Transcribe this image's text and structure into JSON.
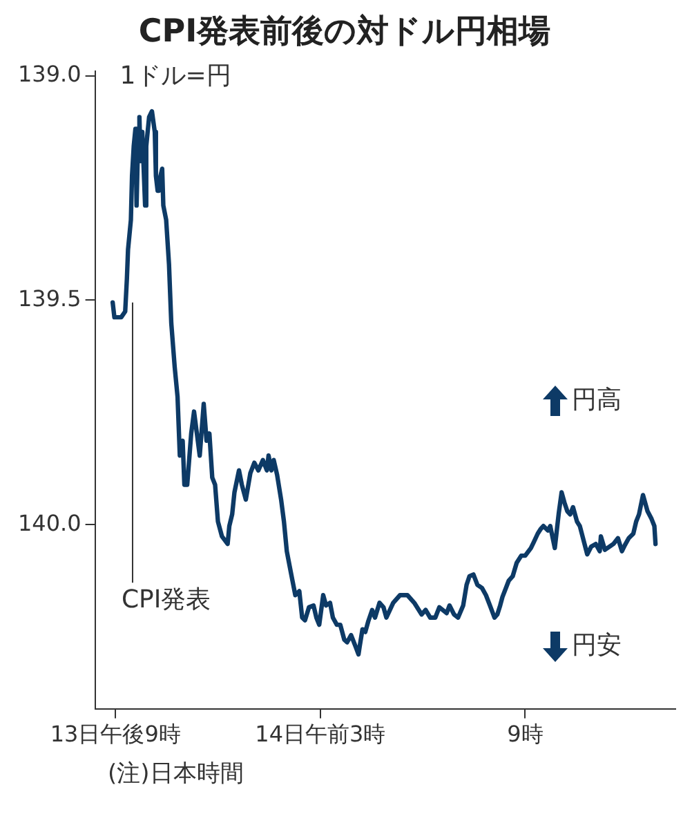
{
  "chart_data": {
    "type": "line",
    "title": "CPI発表前後の対ドル円相場",
    "annotations": [
      "1ドル=円",
      "円高",
      "円安",
      "(注)日本時間"
    ],
    "xlim": [
      "--06-13T20:24",
      "--06-14T13:24"
    ],
    "xticks": [
      {
        "value": "--06-13T21:00",
        "label": "13日午後9時"
      },
      {
        "value": "--06-14T03:00",
        "label": "14日午前3時"
      },
      {
        "value": "--06-14T09:00",
        "label": "9時"
      }
    ],
    "ylim": [
      140.41,
      138.99
    ],
    "yticks": [
      {
        "value": 139,
        "label": "139.0"
      },
      139.5,
      {
        "value": 140,
        "label": "140.0"
      }
    ],
    "grid": false,
    "legend": false,
    "marker": "none",
    "line_style": "solid",
    "ref_lines": [
      {
        "axis": "x",
        "value": "--06-13T21:30",
        "label": "CPI発表"
      }
    ],
    "series": [
      {
        "color": "#0d3a66",
        "x": [
          "--06-13T20:55",
          "--06-13T20:58",
          "--06-13T21:10",
          "--06-13T21:17",
          "--06-13T21:20",
          "--06-13T21:22",
          "--06-13T21:27",
          "--06-13T21:29",
          "--06-13T21:32",
          "--06-13T21:35",
          "--06-13T21:37",
          "--06-13T21:40",
          "--06-13T21:42",
          "--06-13T21:44",
          "--06-13T21:47",
          "--06-13T21:52",
          "--06-13T21:54",
          "--06-13T21:59",
          "--06-13T22:04",
          "--06-13T22:09",
          "--06-13T22:11",
          "--06-13T22:14",
          "--06-13T22:16",
          "--06-13T22:22",
          "--06-13T22:24",
          "--06-13T22:29",
          "--06-13T22:34",
          "--06-13T22:38",
          "--06-13T22:44",
          "--06-13T22:49",
          "--06-13T22:53",
          "--06-13T22:58",
          "--06-13T23:01",
          "--06-13T23:06",
          "--06-13T23:11",
          "--06-13T23:13",
          "--06-13T23:18",
          "--06-13T23:23",
          "--06-13T23:28",
          "--06-13T23:33",
          "--06-13T23:35",
          "--06-13T23:40",
          "--06-13T23:45",
          "--06-13T23:50",
          "--06-13T23:55",
          "--06-14T00:00",
          "--06-14T00:07",
          "--06-14T00:17",
          "--06-14T00:20",
          "--06-14T00:25",
          "--06-14T00:29",
          "--06-14T00:37",
          "--06-14T00:42",
          "--06-14T00:49",
          "--06-14T00:57",
          "--06-14T01:04",
          "--06-14T01:11",
          "--06-14T01:19",
          "--06-14T01:26",
          "--06-14T01:29",
          "--06-14T01:34",
          "--06-14T01:38",
          "--06-14T01:44",
          "--06-14T01:51",
          "--06-14T01:56",
          "--06-14T02:01",
          "--06-14T02:06",
          "--06-14T02:11",
          "--06-14T02:16",
          "--06-14T02:23",
          "--06-14T02:28",
          "--06-14T02:33",
          "--06-14T02:40",
          "--06-14T02:48",
          "--06-14T02:53",
          "--06-14T02:58",
          "--06-14T03:05",
          "--06-14T03:10",
          "--06-14T03:17",
          "--06-14T03:22",
          "--06-14T03:29",
          "--06-14T03:35",
          "--06-14T03:42",
          "--06-14T03:47",
          "--06-14T03:54",
          "--06-14T04:02",
          "--06-14T04:07",
          "--06-14T04:09",
          "--06-14T04:14",
          "--06-14T04:19",
          "--06-14T04:24",
          "--06-14T04:31",
          "--06-14T04:36",
          "--06-14T04:44",
          "--06-14T04:51",
          "--06-14T04:56",
          "--06-14T05:08",
          "--06-14T05:20",
          "--06-14T05:33",
          "--06-14T05:45",
          "--06-14T05:58",
          "--06-14T06:05",
          "--06-14T06:13",
          "--06-14T06:22",
          "--06-14T06:29",
          "--06-14T06:42",
          "--06-14T06:47",
          "--06-14T06:55",
          "--06-14T07:02",
          "--06-14T07:11",
          "--06-14T07:17",
          "--06-14T07:22",
          "--06-14T07:29",
          "--06-14T07:36",
          "--06-14T07:44",
          "--06-14T07:51",
          "--06-14T07:58",
          "--06-14T08:06",
          "--06-14T08:11",
          "--06-14T08:16",
          "--06-14T08:20",
          "--06-14T08:31",
          "--06-14T08:38",
          "--06-14T08:45",
          "--06-14T08:53",
          "--06-14T09:00",
          "--06-14T09:10",
          "--06-14T09:15",
          "--06-14T09:22",
          "--06-14T09:27",
          "--06-14T09:32",
          "--06-14T09:40",
          "--06-14T09:44",
          "--06-14T09:52",
          "--06-14T09:59",
          "--06-14T10:04",
          "--06-14T10:09",
          "--06-14T10:14",
          "--06-14T10:19",
          "--06-14T10:24",
          "--06-14T10:31",
          "--06-14T10:36",
          "--06-14T10:49",
          "--06-14T10:56",
          "--06-14T11:04",
          "--06-14T11:11",
          "--06-14T11:13",
          "--06-14T11:20",
          "--06-14T11:28",
          "--06-14T11:35",
          "--06-14T11:43",
          "--06-14T11:50",
          "--06-14T11:55",
          "--06-14T12:02",
          "--06-14T12:10",
          "--06-14T12:15",
          "--06-14T12:20",
          "--06-14T12:27",
          "--06-14T12:35",
          "--06-14T12:42",
          "--06-14T12:47",
          "--06-14T12:49"
        ],
        "values": [
          139.505,
          139.538,
          139.538,
          139.525,
          139.452,
          139.387,
          139.321,
          139.223,
          139.157,
          139.118,
          139.289,
          139.125,
          139.092,
          139.19,
          139.125,
          139.289,
          139.157,
          139.092,
          139.079,
          139.125,
          139.223,
          139.256,
          139.239,
          139.207,
          139.289,
          139.321,
          139.42,
          139.551,
          139.649,
          139.715,
          139.846,
          139.813,
          139.911,
          139.911,
          139.83,
          139.797,
          139.748,
          139.797,
          139.846,
          139.764,
          139.731,
          139.813,
          139.797,
          139.895,
          139.911,
          139.993,
          140.026,
          140.043,
          140.003,
          139.977,
          139.928,
          139.879,
          139.911,
          139.944,
          139.885,
          139.862,
          139.879,
          139.856,
          139.879,
          139.846,
          139.879,
          139.856,
          139.889,
          139.944,
          139.993,
          140.059,
          140.092,
          140.125,
          140.157,
          140.148,
          140.207,
          140.213,
          140.184,
          140.18,
          140.207,
          140.223,
          140.157,
          140.18,
          140.174,
          140.207,
          140.223,
          140.223,
          140.256,
          140.262,
          140.246,
          140.272,
          140.289,
          140.272,
          140.233,
          140.239,
          140.216,
          140.19,
          140.207,
          140.174,
          140.184,
          140.207,
          140.174,
          140.157,
          140.157,
          140.174,
          140.2,
          140.19,
          140.207,
          140.207,
          140.184,
          140.197,
          140.18,
          140.2,
          140.207,
          140.18,
          140.134,
          140.115,
          140.111,
          140.134,
          140.141,
          140.157,
          140.18,
          140.207,
          140.2,
          140.18,
          140.161,
          140.125,
          140.115,
          140.085,
          140.069,
          140.069,
          140.052,
          140.039,
          140.02,
          140.01,
          140.003,
          140.013,
          140.003,
          140.052,
          139.974,
          139.928,
          139.951,
          139.97,
          139.977,
          139.961,
          139.993,
          140.003,
          140.066,
          140.049,
          140.043,
          140.059,
          140.026,
          140.056,
          140.049,
          140.043,
          140.03,
          140.059,
          140.046,
          140.03,
          140.02,
          139.993,
          139.977,
          139.934,
          139.97,
          139.987,
          140.003,
          140.043
        ]
      }
    ]
  }
}
